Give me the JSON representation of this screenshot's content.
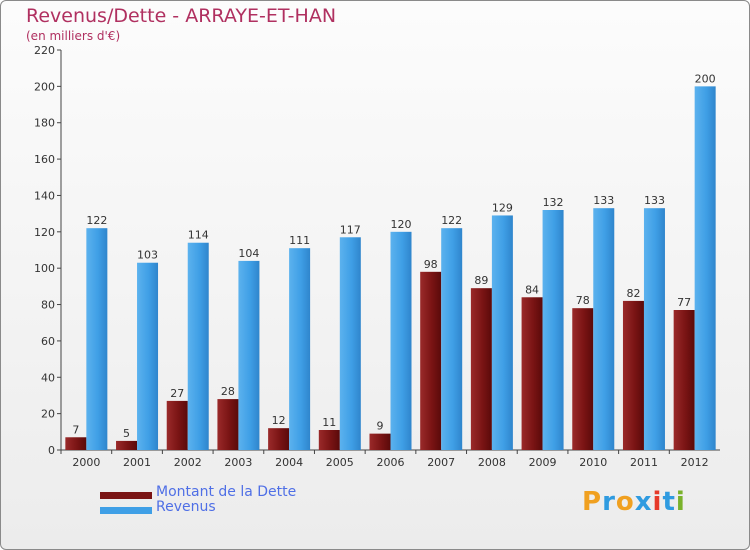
{
  "header": {
    "title": "Revenus/Dette - ARRAYE-ET-HAN",
    "subtitle": "(en milliers d'€)"
  },
  "brand": {
    "letters": [
      "P",
      "r",
      "o",
      "x",
      "i",
      "t",
      "i"
    ],
    "colors": [
      "#f0a020",
      "#2f9be0",
      "#f0a020",
      "#2f9be0",
      "#e63a2a",
      "#2f9be0",
      "#7ab22b"
    ]
  },
  "legend": {
    "items": [
      {
        "label": "Montant de la Dette",
        "color": "#7a1414"
      },
      {
        "label": "Revenus",
        "color": "#3f9fe6"
      }
    ]
  },
  "chart_data": {
    "type": "bar",
    "categories": [
      "2000",
      "2001",
      "2002",
      "2003",
      "2004",
      "2005",
      "2006",
      "2007",
      "2008",
      "2009",
      "2010",
      "2011",
      "2012"
    ],
    "series": [
      {
        "name": "Montant de la Dette",
        "values": [
          7,
          5,
          27,
          28,
          12,
          11,
          9,
          98,
          89,
          84,
          78,
          82,
          77
        ],
        "color": "#7a1414"
      },
      {
        "name": "Revenus",
        "values": [
          122,
          103,
          114,
          104,
          111,
          117,
          120,
          122,
          129,
          132,
          133,
          133,
          200
        ],
        "color": "#3f9fe6"
      }
    ],
    "ylim": [
      0,
      220
    ],
    "yticks": [
      0,
      20,
      40,
      60,
      80,
      100,
      120,
      140,
      160,
      180,
      200,
      220
    ],
    "grid": false
  }
}
